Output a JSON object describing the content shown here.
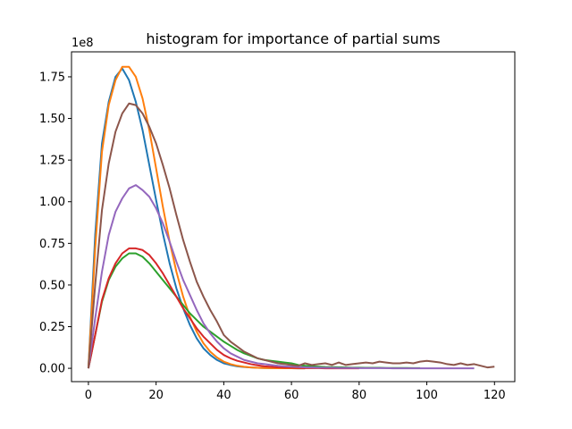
{
  "chart_data": {
    "type": "line",
    "title": "histogram for importance of partial sums",
    "xlabel": "",
    "ylabel": "",
    "y_offset_label": "1e8",
    "xlim": [
      -5,
      126
    ],
    "ylim": [
      -0.08,
      1.9
    ],
    "x_ticks": [
      0,
      20,
      40,
      60,
      80,
      100,
      120
    ],
    "x_tick_labels": [
      "0",
      "20",
      "40",
      "60",
      "80",
      "100",
      "120"
    ],
    "y_ticks": [
      0.0,
      0.25,
      0.5,
      0.75,
      1.0,
      1.25,
      1.5,
      1.75
    ],
    "y_tick_labels": [
      "0.00",
      "0.25",
      "0.50",
      "0.75",
      "1.00",
      "1.25",
      "1.50",
      "1.75"
    ],
    "grid": false,
    "legend": "none",
    "series": [
      {
        "color": "#1f77b4",
        "x": [
          0,
          2,
          4,
          6,
          8,
          10,
          12,
          14,
          16,
          18,
          20,
          22,
          24,
          26,
          28,
          30,
          32,
          34,
          36,
          38,
          40,
          42,
          44,
          46,
          48,
          50,
          52,
          54,
          56,
          58,
          60,
          62,
          64
        ],
        "y": [
          0.0,
          0.8,
          1.35,
          1.6,
          1.75,
          1.8,
          1.73,
          1.6,
          1.43,
          1.22,
          1.01,
          0.81,
          0.63,
          0.48,
          0.36,
          0.26,
          0.18,
          0.12,
          0.08,
          0.05,
          0.03,
          0.02,
          0.012,
          0.008,
          0.005,
          0.003,
          0.002,
          0.001,
          0.0005,
          0.0003,
          0.0002,
          0.0001,
          0.0
        ]
      },
      {
        "color": "#ff7f0e",
        "x": [
          0,
          2,
          4,
          6,
          8,
          10,
          12,
          14,
          16,
          18,
          20,
          22,
          24,
          26,
          28,
          30,
          32,
          34,
          36,
          38,
          40,
          42,
          44,
          46,
          48,
          50,
          52,
          54,
          56,
          58,
          60,
          62,
          64
        ],
        "y": [
          0.0,
          0.72,
          1.3,
          1.58,
          1.73,
          1.81,
          1.81,
          1.75,
          1.62,
          1.43,
          1.2,
          0.97,
          0.76,
          0.58,
          0.43,
          0.31,
          0.22,
          0.15,
          0.1,
          0.065,
          0.04,
          0.025,
          0.015,
          0.009,
          0.005,
          0.003,
          0.002,
          0.001,
          0.0005,
          0.0003,
          0.0002,
          0.0001,
          0.0
        ]
      },
      {
        "color": "#2ca02c",
        "x": [
          0,
          2,
          4,
          6,
          8,
          10,
          12,
          14,
          16,
          18,
          20,
          22,
          24,
          26,
          28,
          30,
          32,
          34,
          36,
          38,
          40,
          42,
          44,
          46,
          48,
          50,
          52,
          54,
          56,
          58,
          60,
          62,
          64,
          66,
          68,
          70,
          72,
          74,
          76,
          78,
          80,
          82,
          84,
          86,
          88,
          90,
          92,
          94,
          96,
          98
        ],
        "y": [
          0.0,
          0.2,
          0.4,
          0.53,
          0.61,
          0.66,
          0.69,
          0.69,
          0.67,
          0.63,
          0.58,
          0.53,
          0.48,
          0.43,
          0.38,
          0.33,
          0.29,
          0.25,
          0.22,
          0.19,
          0.16,
          0.135,
          0.11,
          0.09,
          0.075,
          0.06,
          0.05,
          0.045,
          0.04,
          0.035,
          0.03,
          0.02,
          0.015,
          0.012,
          0.01,
          0.008,
          0.007,
          0.006,
          0.005,
          0.004,
          0.004,
          0.003,
          0.003,
          0.003,
          0.002,
          0.002,
          0.002,
          0.002,
          0.001,
          0.001
        ]
      },
      {
        "color": "#d62728",
        "x": [
          0,
          2,
          4,
          6,
          8,
          10,
          12,
          14,
          16,
          18,
          20,
          22,
          24,
          26,
          28,
          30,
          32,
          34,
          36,
          38,
          40,
          42,
          44,
          46,
          48,
          50,
          52,
          54,
          56,
          58,
          60,
          62,
          64,
          66,
          68,
          70,
          72,
          74,
          76,
          78,
          80
        ],
        "y": [
          0.0,
          0.2,
          0.41,
          0.54,
          0.63,
          0.69,
          0.72,
          0.72,
          0.71,
          0.68,
          0.63,
          0.57,
          0.5,
          0.43,
          0.36,
          0.3,
          0.24,
          0.19,
          0.15,
          0.11,
          0.08,
          0.06,
          0.045,
          0.035,
          0.025,
          0.018,
          0.012,
          0.009,
          0.006,
          0.004,
          0.003,
          0.002,
          0.001,
          0.001,
          0.001,
          0.0,
          0.0,
          0.0,
          0.0,
          0.0,
          0.0
        ]
      },
      {
        "color": "#9467bd",
        "x": [
          0,
          2,
          4,
          6,
          8,
          10,
          12,
          14,
          16,
          18,
          20,
          22,
          24,
          26,
          28,
          30,
          32,
          34,
          36,
          38,
          40,
          42,
          44,
          46,
          48,
          50,
          52,
          54,
          56,
          58,
          60,
          62,
          64,
          66,
          68,
          70,
          72,
          74,
          76,
          78,
          80,
          82,
          84,
          86,
          88,
          90,
          92,
          94,
          96,
          98,
          100,
          102,
          104,
          106,
          108,
          110,
          112,
          114
        ],
        "y": [
          0.0,
          0.3,
          0.58,
          0.8,
          0.94,
          1.02,
          1.08,
          1.1,
          1.07,
          1.03,
          0.96,
          0.87,
          0.76,
          0.64,
          0.53,
          0.44,
          0.35,
          0.27,
          0.21,
          0.16,
          0.12,
          0.09,
          0.07,
          0.05,
          0.04,
          0.03,
          0.025,
          0.02,
          0.015,
          0.012,
          0.01,
          0.008,
          0.006,
          0.005,
          0.004,
          0.003,
          0.003,
          0.002,
          0.002,
          0.002,
          0.001,
          0.001,
          0.001,
          0.001,
          0.001,
          0.0,
          0.0,
          0.0,
          0.0,
          0.0,
          0.0,
          0.0,
          0.0,
          0.0,
          0.0,
          0.0,
          0.0,
          0.0
        ]
      },
      {
        "color": "#8c564b",
        "x": [
          0,
          2,
          4,
          6,
          8,
          10,
          12,
          14,
          16,
          18,
          20,
          22,
          24,
          26,
          28,
          30,
          32,
          34,
          36,
          38,
          40,
          42,
          44,
          46,
          48,
          50,
          52,
          54,
          56,
          58,
          60,
          62,
          64,
          66,
          68,
          70,
          72,
          74,
          76,
          78,
          80,
          82,
          84,
          86,
          88,
          90,
          92,
          94,
          96,
          98,
          100,
          102,
          104,
          106,
          108,
          110,
          112,
          114,
          116,
          118,
          120
        ],
        "y": [
          0.0,
          0.5,
          0.95,
          1.23,
          1.42,
          1.53,
          1.59,
          1.58,
          1.53,
          1.45,
          1.35,
          1.22,
          1.08,
          0.92,
          0.77,
          0.64,
          0.52,
          0.43,
          0.35,
          0.28,
          0.2,
          0.16,
          0.13,
          0.1,
          0.08,
          0.06,
          0.05,
          0.04,
          0.03,
          0.025,
          0.02,
          0.015,
          0.03,
          0.02,
          0.025,
          0.03,
          0.02,
          0.035,
          0.02,
          0.025,
          0.03,
          0.035,
          0.03,
          0.04,
          0.035,
          0.03,
          0.03,
          0.035,
          0.03,
          0.04,
          0.045,
          0.04,
          0.035,
          0.025,
          0.02,
          0.03,
          0.02,
          0.025,
          0.015,
          0.005,
          0.01
        ]
      }
    ]
  }
}
